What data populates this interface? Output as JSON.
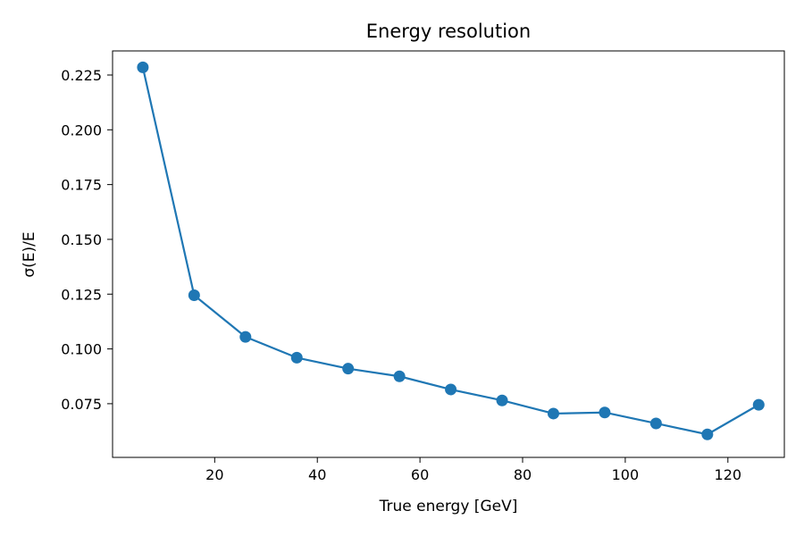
{
  "chart_data": {
    "type": "line",
    "title": "Energy resolution",
    "xlabel": "True energy [GeV]",
    "ylabel": "σ(E)/E",
    "xlim": [
      0.1,
      131.0
    ],
    "ylim": [
      0.0505,
      0.236
    ],
    "xticks": [
      20,
      40,
      60,
      80,
      100,
      120
    ],
    "yticks": [
      0.075,
      0.1,
      0.125,
      0.15,
      0.175,
      0.2,
      0.225
    ],
    "ytick_labels": [
      "0.075",
      "0.100",
      "0.125",
      "0.150",
      "0.175",
      "0.200",
      "0.225"
    ],
    "grid": false,
    "legend": false,
    "color": "#1f77b4",
    "series": [
      {
        "x": [
          6.0,
          16.0,
          26.0,
          36.0,
          46.0,
          56.0,
          66.0,
          76.0,
          86.0,
          96.0,
          106.0,
          116.0,
          126.0
        ],
        "values": [
          0.2285,
          0.1245,
          0.1055,
          0.096,
          0.091,
          0.0875,
          0.0815,
          0.0765,
          0.0705,
          0.071,
          0.066,
          0.061,
          0.0745
        ]
      }
    ]
  }
}
